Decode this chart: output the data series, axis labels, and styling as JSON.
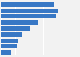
{
  "values": [
    93,
    100,
    97,
    65,
    50,
    36,
    30,
    28,
    18
  ],
  "bar_color": "#3878c5",
  "background_color": "#f2f2f2",
  "grid_color": "#ffffff",
  "max_val": 108,
  "bar_height": 0.72,
  "figsize": [
    1.0,
    0.71
  ],
  "dpi": 100
}
